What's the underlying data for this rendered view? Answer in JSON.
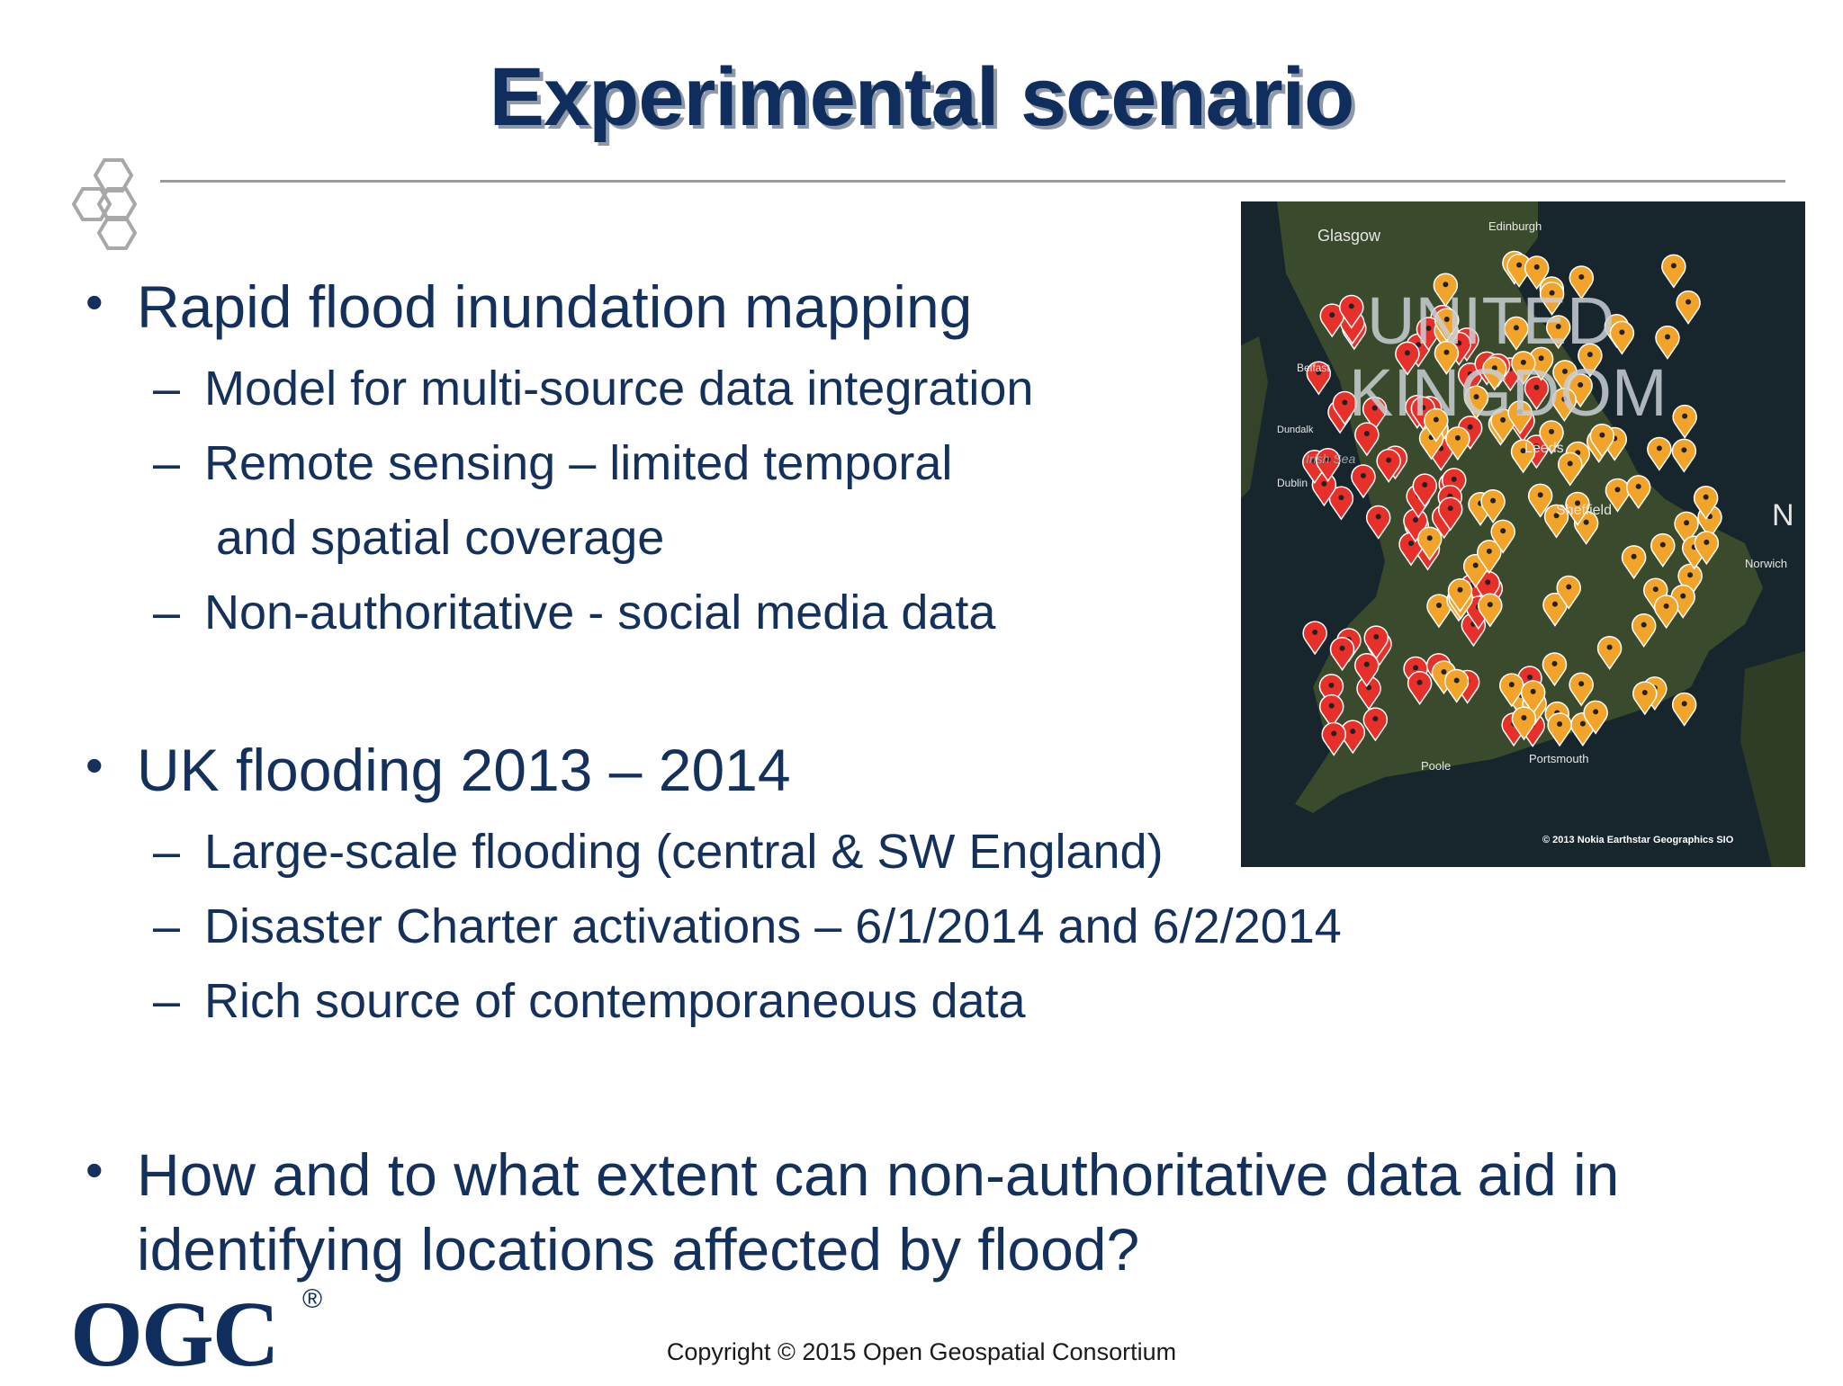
{
  "slide": {
    "title": "Experimental scenario",
    "bullets": [
      {
        "text": "Rapid flood inundation mapping",
        "subs": [
          "Model for multi-source data integration",
          "Remote sensing – limited temporal",
          "Non-authoritative - social media data"
        ],
        "continuation": "and spatial coverage"
      },
      {
        "text": "UK flooding 2013 – 2014",
        "subs": [
          "Large-scale flooding (central & SW England)",
          "Disaster Charter activations – 6/1/2014 and 6/2/2014",
          "Rich source of contemporaneous data"
        ]
      },
      {
        "line1": "How and to what extent can non-authoritative data aid in",
        "line2": "identifying locations affected by flood?"
      }
    ],
    "bullet_glyph": "•",
    "dash_glyph": "–"
  },
  "map": {
    "country_line1": "UNITED",
    "country_line2": "KINGDOM",
    "places": [
      "Glasgow",
      "Edinburgh",
      "Belfast",
      "Dundalk",
      "Dublin",
      "Irish Sea",
      "Leeds",
      "Sheffield",
      "Norwich",
      "Poole",
      "Portsmouth"
    ],
    "attribution": "© 2013 Nokia   Earthstar Geographics SIO",
    "colors": {
      "sea": "#17262d",
      "land": "#3a4a2c",
      "severe": "#e8302b",
      "warning": "#f2a32a"
    }
  },
  "footer": {
    "logo": "OGC",
    "registered": "®",
    "copyright": "Copyright © 2015 Open Geospatial Consortium"
  }
}
